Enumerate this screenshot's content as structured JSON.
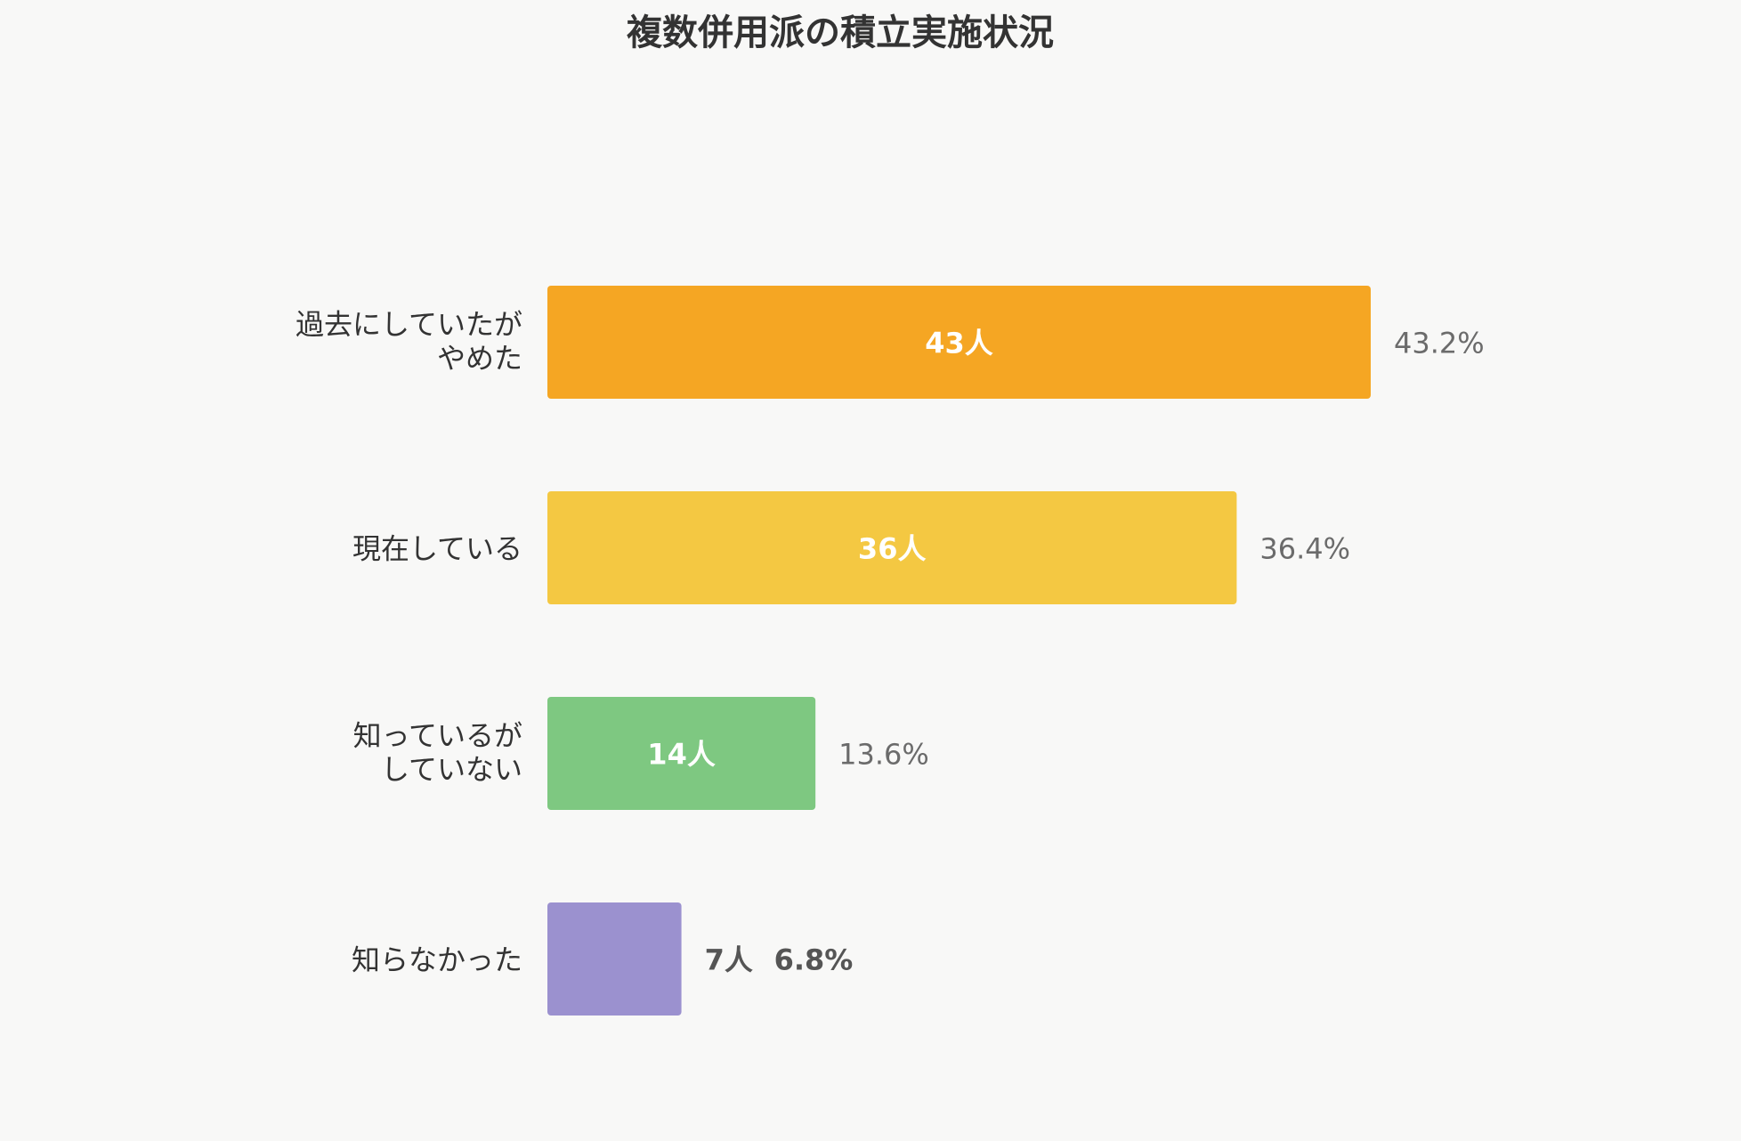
{
  "chart_data": {
    "type": "bar",
    "orientation": "horizontal",
    "title": "複数併用派の積立実施状況",
    "categories": [
      [
        "過去にしていたが",
        "やめた"
      ],
      [
        "現在している"
      ],
      [
        "知っているが",
        "していない"
      ],
      [
        "知らなかった"
      ]
    ],
    "values": [
      43,
      36,
      14,
      7
    ],
    "value_labels": [
      "43人",
      "36人",
      "14人",
      "7人"
    ],
    "percent_labels": [
      "43.2%",
      "36.4%",
      "13.6%",
      "6.8%"
    ],
    "colors": [
      "#f5a623",
      "#f4c842",
      "#7ec881",
      "#9b91cf"
    ],
    "xlim": [
      0,
      43
    ],
    "grid": false,
    "legend": "none"
  }
}
